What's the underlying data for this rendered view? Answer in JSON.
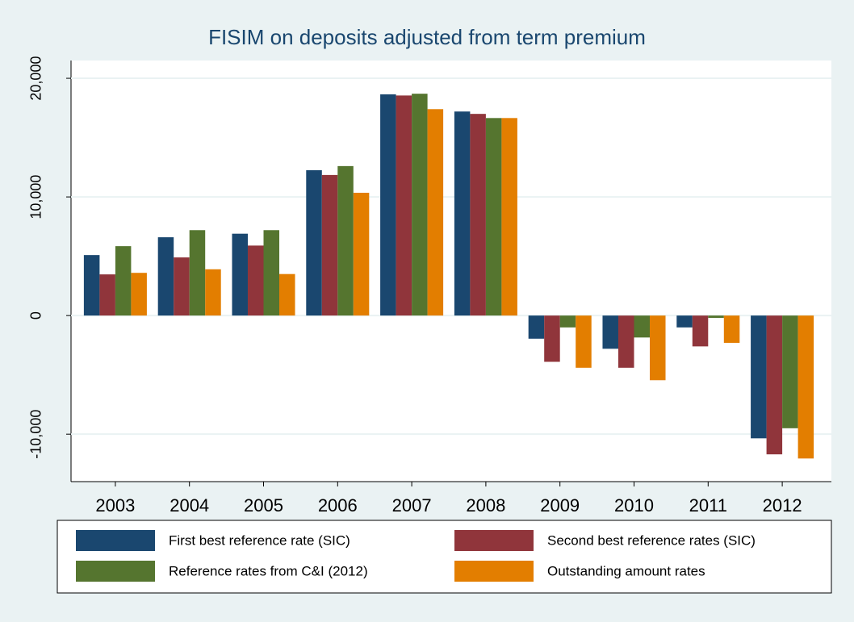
{
  "chart_data": {
    "type": "bar",
    "title": "FISIM on deposits adjusted from term premium",
    "categories": [
      "2003",
      "2004",
      "2005",
      "2006",
      "2007",
      "2008",
      "2009",
      "2010",
      "2011",
      "2012"
    ],
    "series": [
      {
        "name": "First best reference rate (SIC)",
        "color": "#1a476f",
        "values": [
          5100,
          6600,
          6900,
          12250,
          18650,
          17200,
          -1950,
          -2800,
          -1000,
          -10350
        ]
      },
      {
        "name": "Second best reference rates (SIC)",
        "color": "#90353b",
        "values": [
          3470,
          4900,
          5900,
          11850,
          18550,
          17000,
          -3900,
          -4400,
          -2600,
          -11700
        ]
      },
      {
        "name": "Reference rates from C&I (2012)",
        "color": "#55752f",
        "values": [
          5850,
          7200,
          7200,
          12600,
          18700,
          16650,
          -1000,
          -1850,
          -200,
          -9500
        ]
      },
      {
        "name": "Outstanding amount rates",
        "color": "#e37e00",
        "values": [
          3600,
          3900,
          3500,
          10350,
          17400,
          16650,
          -4400,
          -5450,
          -2300,
          -12050
        ]
      }
    ],
    "ylim": [
      -14000,
      21500
    ],
    "yticks": [
      {
        "value": -10000,
        "label": "-10,000"
      },
      0,
      {
        "value": 10000,
        "label": "10,000"
      },
      {
        "value": 20000,
        "label": "20,000"
      }
    ],
    "grid": true
  }
}
